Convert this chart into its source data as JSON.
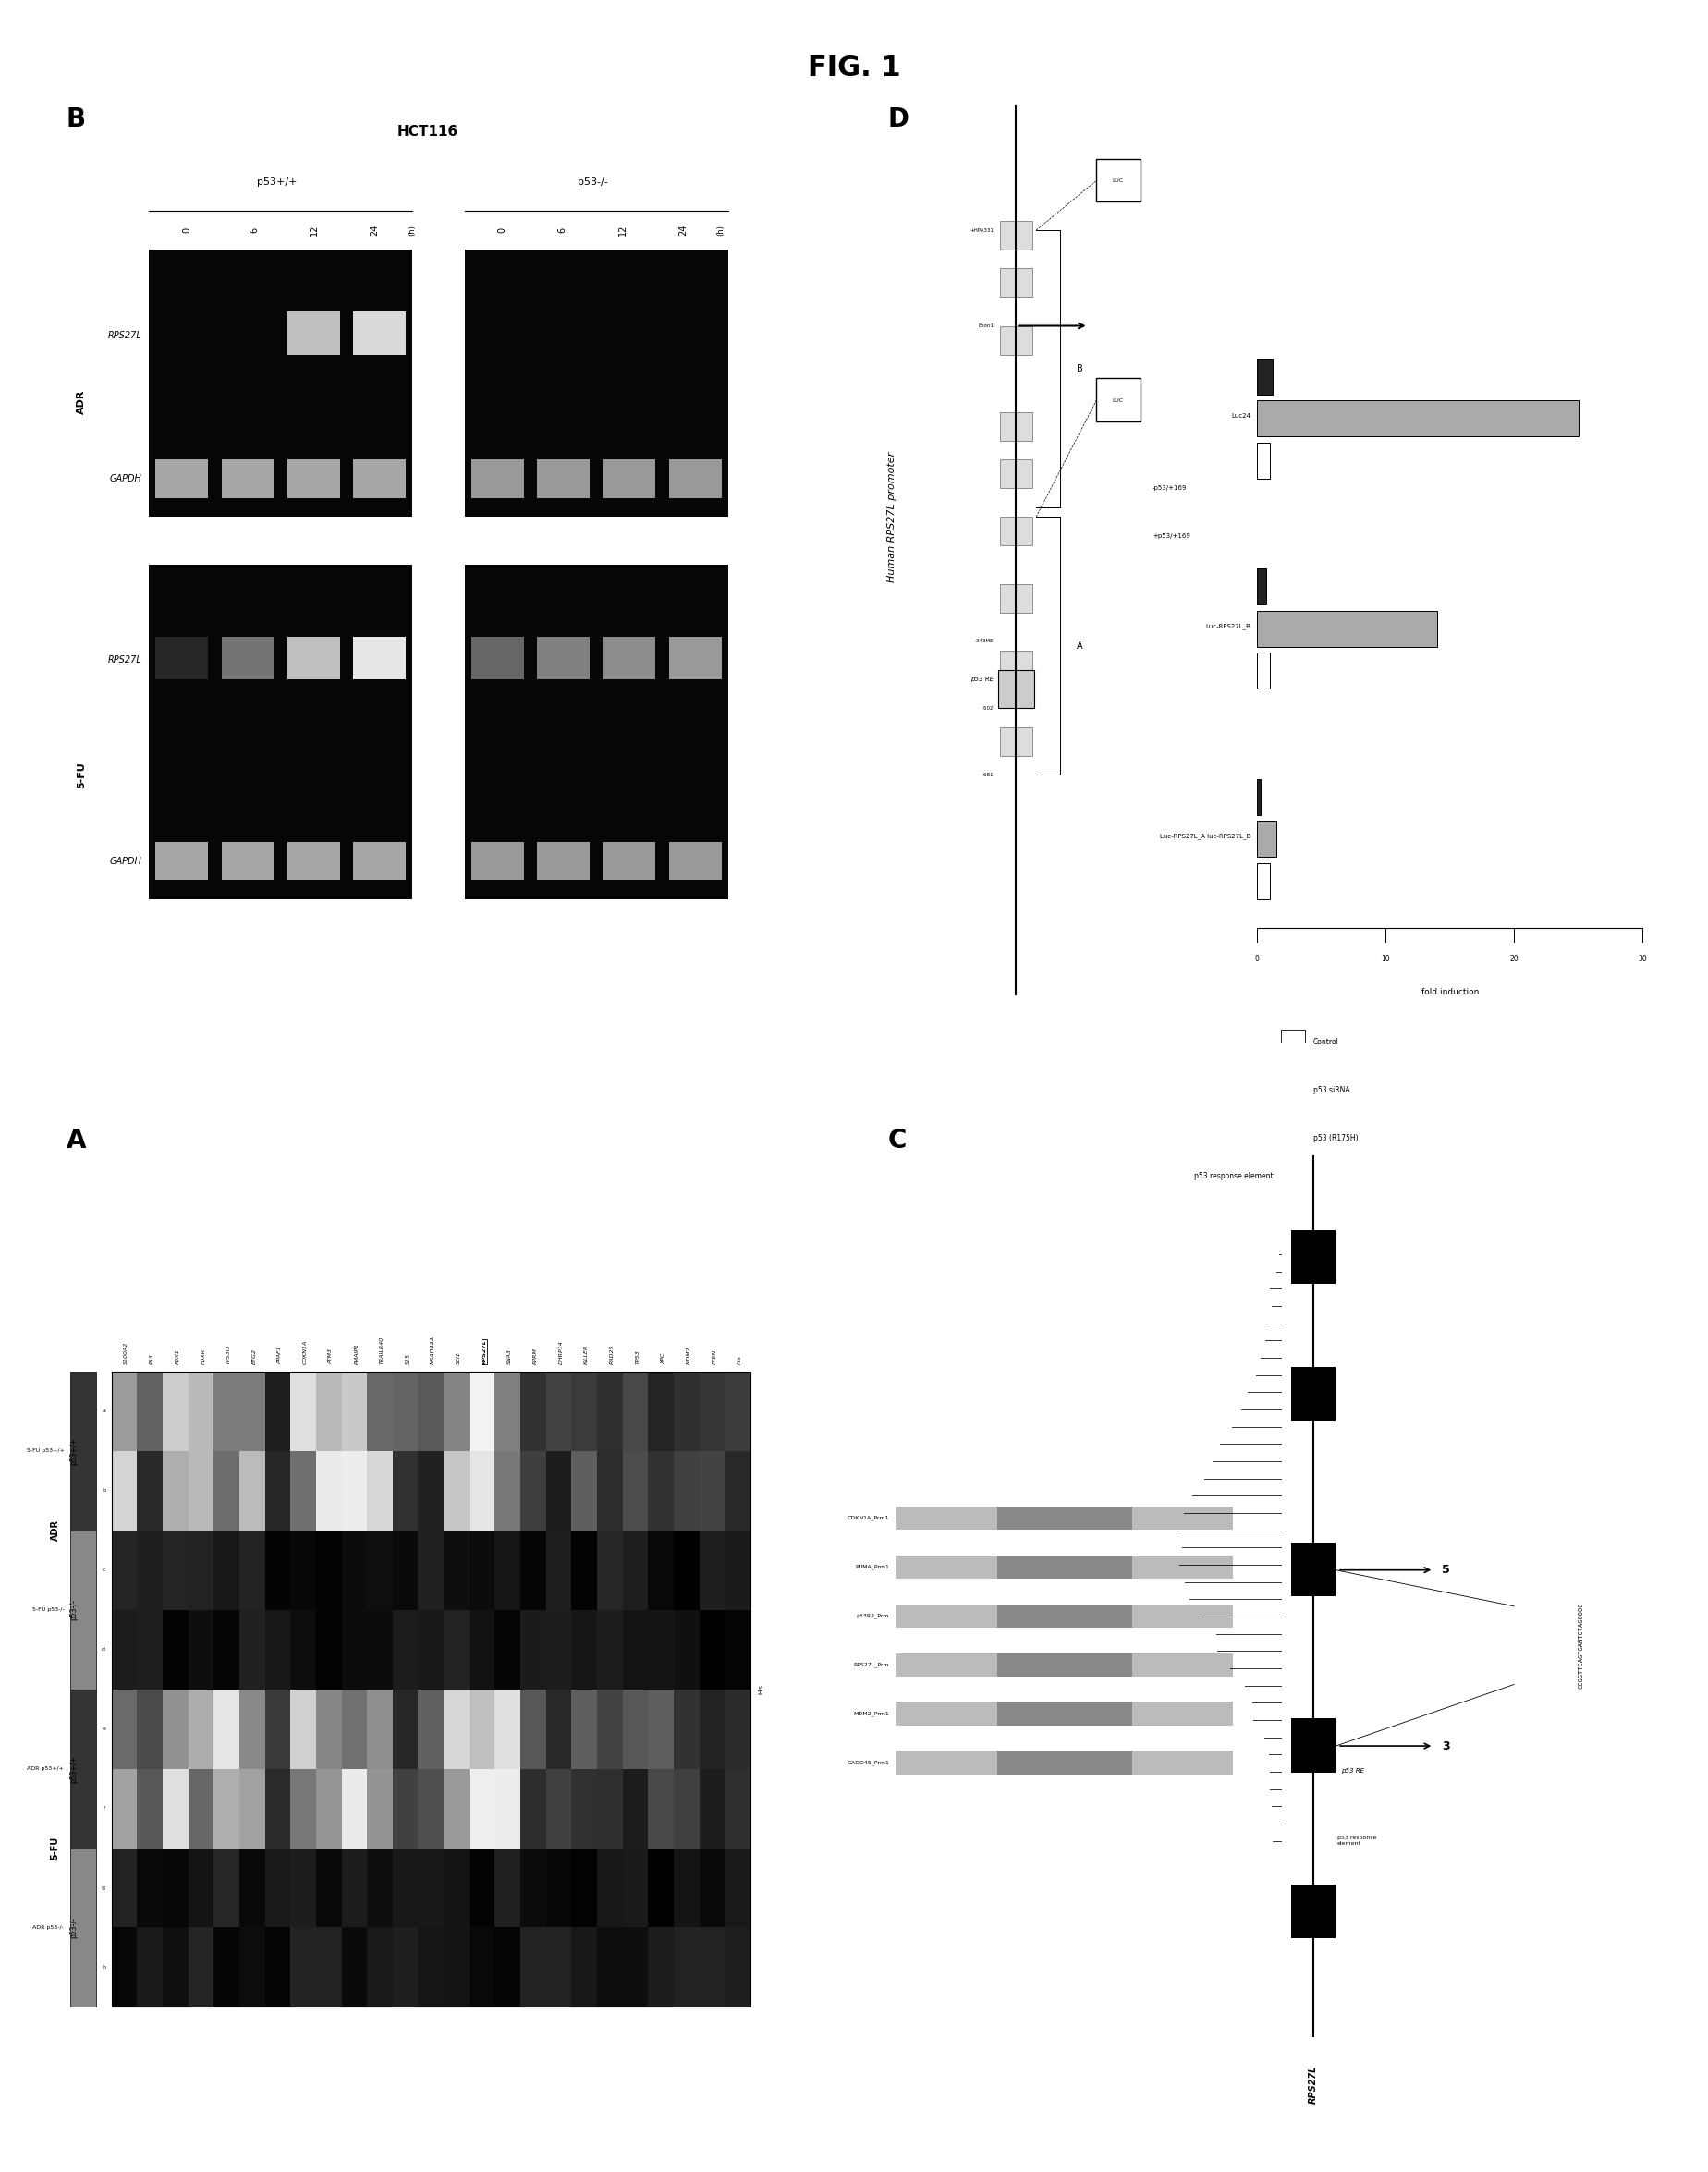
{
  "title": "FIG. 1",
  "bg_color": "#ffffff",
  "panel_B": {
    "title": "HCT116",
    "group1": "p53+/+",
    "group2": "p53-/-",
    "treatment1": "ADR",
    "treatment2": "5-FU",
    "timepoints": [
      "0",
      "6",
      "12",
      "24"
    ],
    "gene1": "RPS27L",
    "gene2": "GAPDH"
  },
  "panel_A": {
    "gene_names": [
      "S100A2",
      "P53",
      "FDX1",
      "FDXR",
      "TP53I3",
      "BTG2",
      "APAF1",
      "CDKN1A",
      "ATM3",
      "PMAIP1",
      "TRAILR40",
      "S15",
      "MSAD4AA",
      "SEI1",
      "RPS27L",
      "SNA3",
      "RPRM",
      "DHRP14",
      "KILLER",
      "RAD25"
    ],
    "treatment_groups": [
      "5-FU p53+/+",
      "5-FU p53-/-",
      "ADR p53+/+",
      "ADR p53-/-"
    ]
  },
  "panel_D": {
    "promoter_label": "Human RPS27L promoter",
    "legend_labels": [
      "Control",
      "p53 siRNA",
      "p53 (R175H)"
    ],
    "legend_colors": [
      "#ffffff",
      "#aaaaaa",
      "#222222"
    ],
    "bar_data": [
      {
        "label": "Luc-RPS27L_A luc-RPS27L_B",
        "values": [
          1.0,
          1.5,
          0.3
        ]
      },
      {
        "label": "Luc-RPS27L_B",
        "values": [
          1.0,
          14.0,
          0.7
        ]
      },
      {
        "label": "Luc24",
        "values": [
          1.0,
          25.0,
          1.2
        ]
      }
    ],
    "x_label": "fold induction",
    "x_max": 30
  },
  "panel_C": {
    "gene_label": "RPS27L",
    "exon_labels": [
      "3",
      "5"
    ],
    "seq_text": "CCGGTTCAGTGANTCTAGOOOG",
    "alignment_names": [
      "CDKN1A_Prm1",
      "PUMA_Prm1",
      "p53R2_Prm",
      "RPS27L_Prm",
      "MDM2_Prm1",
      "GADD45_Prm1"
    ],
    "p53re_label": "p53 response element"
  }
}
